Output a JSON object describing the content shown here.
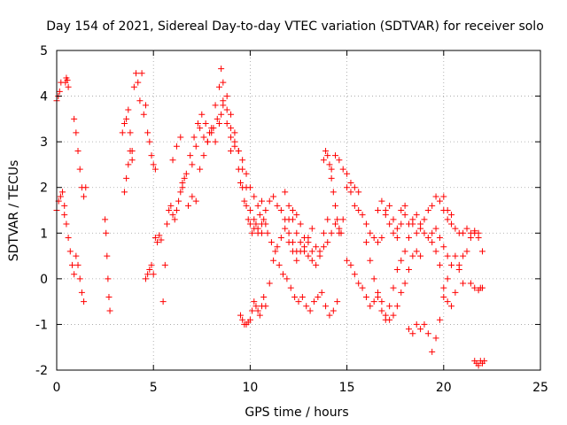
{
  "chart_data": {
    "type": "scatter",
    "title": "Day 154 of 2021, Sidereal Day-to-day VTEC variation (SDTVAR) for receiver solo",
    "xlabel": "GPS time / hours",
    "ylabel": "SDTVAR / TECUs",
    "xlim": [
      0,
      25
    ],
    "ylim": [
      -2,
      5
    ],
    "xticks": [
      0,
      5,
      10,
      15,
      20,
      25
    ],
    "yticks": [
      -2,
      -1,
      0,
      1,
      2,
      3,
      4,
      5
    ],
    "xtick_labels": [
      "0",
      "5",
      "10",
      "15",
      "20",
      "25"
    ],
    "ytick_labels": [
      "-2",
      "-1",
      "0",
      "1",
      "2",
      "3",
      "4",
      "5"
    ],
    "grid": true,
    "marker": "+",
    "color": "#ff0000",
    "series": [
      {
        "name": "seg01",
        "x": [
          0.0,
          0.1,
          0.2,
          0.3,
          0.4
        ],
        "y": [
          1.5,
          1.7,
          1.8,
          1.9,
          1.6
        ]
      },
      {
        "name": "seg02",
        "x": [
          0.0,
          0.08,
          0.15,
          0.22
        ],
        "y": [
          3.9,
          4.0,
          4.1,
          4.3
        ]
      },
      {
        "name": "seg03",
        "x": [
          0.45,
          0.5,
          0.55,
          0.6
        ],
        "y": [
          4.3,
          4.4,
          4.35,
          4.2
        ]
      },
      {
        "name": "seg04",
        "x": [
          0.4,
          0.5,
          0.6,
          0.7,
          0.8,
          0.9,
          1.0,
          1.1,
          1.2,
          1.3,
          1.4
        ],
        "y": [
          1.4,
          1.2,
          0.9,
          0.6,
          0.3,
          0.1,
          0.5,
          0.3,
          0.0,
          -0.3,
          -0.5
        ]
      },
      {
        "name": "seg05",
        "x": [
          0.9,
          1.0,
          1.1,
          1.2,
          1.3,
          1.4,
          1.5
        ],
        "y": [
          3.5,
          3.2,
          2.8,
          2.4,
          2.0,
          1.8,
          2.0
        ]
      },
      {
        "name": "seg06",
        "x": [
          2.5,
          2.55,
          2.6,
          2.65,
          2.7,
          2.75
        ],
        "y": [
          1.3,
          1.0,
          0.5,
          0.0,
          -0.4,
          -0.7
        ]
      },
      {
        "name": "seg07",
        "x": [
          3.4,
          3.5,
          3.6,
          3.7,
          3.8,
          3.9,
          4.0,
          4.1,
          4.2
        ],
        "y": [
          3.2,
          3.4,
          3.5,
          3.7,
          3.2,
          2.8,
          4.2,
          4.5,
          4.3
        ]
      },
      {
        "name": "seg08",
        "x": [
          3.5,
          3.6,
          3.7,
          3.8,
          3.9
        ],
        "y": [
          1.9,
          2.2,
          2.5,
          2.8,
          2.6
        ]
      },
      {
        "name": "seg09",
        "x": [
          4.3,
          4.4,
          4.5,
          4.6,
          4.7,
          4.8,
          4.9,
          5.0,
          5.1
        ],
        "y": [
          3.9,
          4.5,
          3.6,
          3.8,
          3.2,
          3.0,
          2.7,
          2.5,
          2.4
        ]
      },
      {
        "name": "seg10",
        "x": [
          4.6,
          4.7,
          4.8,
          4.9,
          5.0
        ],
        "y": [
          0.0,
          0.1,
          0.2,
          0.3,
          0.1
        ]
      },
      {
        "name": "seg11",
        "x": [
          5.1,
          5.2,
          5.3,
          5.4
        ],
        "y": [
          0.9,
          0.8,
          0.95,
          0.85
        ]
      },
      {
        "name": "seg12",
        "x": [
          5.5,
          5.6,
          5.7,
          5.8,
          5.9,
          6.0,
          6.1,
          6.2,
          6.3,
          6.4,
          6.5
        ],
        "y": [
          -0.5,
          0.3,
          1.2,
          1.5,
          1.6,
          1.4,
          1.3,
          1.5,
          1.7,
          1.9,
          2.1
        ]
      },
      {
        "name": "seg13",
        "x": [
          6.0,
          6.2,
          6.4,
          6.6,
          6.8,
          7.0,
          7.2,
          7.4,
          7.6,
          7.8,
          8.0,
          8.2,
          8.4,
          8.6,
          8.8,
          9.0
        ],
        "y": [
          2.6,
          2.9,
          3.1,
          2.2,
          1.6,
          1.8,
          1.7,
          2.4,
          2.7,
          3.0,
          3.2,
          3.0,
          3.4,
          3.8,
          3.4,
          2.8
        ]
      },
      {
        "name": "seg14",
        "x": [
          6.5,
          6.7,
          6.9,
          7.1,
          7.3,
          7.5,
          7.7,
          7.9,
          8.1,
          8.3,
          8.5
        ],
        "y": [
          2.0,
          2.3,
          2.7,
          3.1,
          3.4,
          3.6,
          3.4,
          3.2,
          3.3,
          3.5,
          3.6
        ]
      },
      {
        "name": "seg15",
        "x": [
          7.0,
          7.2,
          7.4,
          7.6,
          7.8,
          8.0,
          8.2,
          8.4,
          8.5,
          8.6,
          8.8,
          9.0,
          9.2,
          9.4,
          9.6,
          9.8,
          10.0,
          10.2,
          10.4,
          10.6,
          10.8
        ],
        "y": [
          2.5,
          2.9,
          3.3,
          3.1,
          3.0,
          3.3,
          3.8,
          4.2,
          4.6,
          4.3,
          4.0,
          3.6,
          3.2,
          2.8,
          2.4,
          2.0,
          1.5,
          1.3,
          1.1,
          1.0,
          1.2
        ]
      },
      {
        "name": "seg16",
        "x": [
          8.6,
          8.8,
          9.0,
          9.2,
          9.4,
          9.6,
          9.8,
          10.0,
          10.2,
          10.4,
          10.6,
          10.8,
          11.0,
          11.2,
          11.4,
          11.6,
          11.8,
          12.0,
          12.2,
          12.4
        ],
        "y": [
          3.9,
          3.7,
          3.3,
          2.9,
          2.4,
          2.0,
          1.6,
          1.2,
          1.1,
          1.0,
          1.2,
          1.5,
          1.7,
          1.8,
          1.6,
          1.5,
          1.3,
          1.0,
          0.8,
          0.6
        ]
      },
      {
        "name": "seg17",
        "x": [
          9.0,
          9.2,
          9.4,
          9.6,
          9.8,
          10.0,
          10.2,
          10.4,
          10.6
        ],
        "y": [
          3.1,
          3.0,
          2.8,
          2.6,
          2.3,
          2.0,
          1.8,
          1.6,
          1.7
        ]
      },
      {
        "name": "seg18",
        "x": [
          9.5,
          9.7,
          9.9,
          10.1,
          10.3,
          10.5,
          10.7,
          10.9,
          11.1,
          11.3,
          11.5,
          11.7,
          11.9,
          12.1,
          12.3,
          12.5,
          12.7,
          12.9,
          13.1,
          13.3,
          13.5,
          13.7,
          13.9,
          14.1,
          14.3,
          14.5
        ],
        "y": [
          2.1,
          1.7,
          1.3,
          1.0,
          1.2,
          1.4,
          1.3,
          1.0,
          0.8,
          0.6,
          0.3,
          0.1,
          0.0,
          -0.2,
          -0.4,
          -0.5,
          -0.4,
          -0.6,
          -0.7,
          -0.5,
          -0.4,
          -0.3,
          -0.6,
          -0.8,
          -0.7,
          -0.5
        ]
      },
      {
        "name": "seg19",
        "x": [
          9.5,
          9.6,
          9.7,
          9.8,
          9.9,
          10.0,
          10.1,
          10.2,
          10.3,
          10.4,
          10.5,
          10.6,
          10.7
        ],
        "y": [
          -0.8,
          -0.9,
          -1.0,
          -1.0,
          -0.95,
          -0.9,
          -0.7,
          -0.5,
          -0.6,
          -0.7,
          -0.8,
          -0.6,
          -0.4
        ]
      },
      {
        "name": "seg20",
        "x": [
          10.8,
          11.0,
          11.2,
          11.4,
          11.6,
          11.8,
          12.0,
          12.2,
          12.4,
          12.6,
          12.8,
          13.0,
          13.2,
          13.4,
          13.6,
          13.8,
          14.0,
          14.2,
          14.4,
          14.6,
          14.8,
          15.0,
          15.2,
          15.4,
          15.6
        ],
        "y": [
          -0.6,
          -0.1,
          0.4,
          0.7,
          0.9,
          1.1,
          1.3,
          1.5,
          1.4,
          1.2,
          0.9,
          0.8,
          0.6,
          0.3,
          0.6,
          1.0,
          1.3,
          2.4,
          2.7,
          2.6,
          2.4,
          2.3,
          2.1,
          2.0,
          1.9
        ]
      },
      {
        "name": "seg21",
        "x": [
          12.0,
          12.2,
          12.4,
          12.6,
          12.8,
          13.0,
          13.2,
          13.4,
          13.6,
          13.8,
          14.0,
          14.2,
          14.4,
          14.6,
          14.8
        ],
        "y": [
          0.8,
          0.6,
          0.4,
          0.6,
          0.7,
          0.9,
          1.1,
          0.7,
          0.5,
          0.7,
          0.8,
          1.0,
          1.2,
          1.0,
          1.3
        ]
      },
      {
        "name": "seg22",
        "x": [
          13.8,
          13.9,
          14.0,
          14.1,
          14.2,
          14.3,
          14.4,
          14.5,
          14.6,
          14.7
        ],
        "y": [
          2.6,
          2.8,
          2.7,
          2.5,
          2.2,
          1.9,
          1.6,
          1.3,
          1.1,
          1.0
        ]
      },
      {
        "name": "seg23",
        "x": [
          15.0,
          15.2,
          15.4,
          15.6,
          15.8,
          16.0,
          16.2,
          16.4,
          16.6,
          16.8,
          17.0,
          17.2,
          17.4,
          17.6,
          17.8,
          18.0,
          18.2,
          18.4,
          18.6,
          18.8,
          19.0,
          19.2,
          19.4,
          19.6,
          19.8,
          20.0,
          20.2,
          20.4
        ],
        "y": [
          2.0,
          1.9,
          1.6,
          1.5,
          1.4,
          1.2,
          1.0,
          0.9,
          0.8,
          0.9,
          1.5,
          1.6,
          1.3,
          1.1,
          1.5,
          1.4,
          1.2,
          1.3,
          1.4,
          1.2,
          1.3,
          1.5,
          1.6,
          1.8,
          1.7,
          1.8,
          1.5,
          1.4
        ]
      },
      {
        "name": "seg24",
        "x": [
          15.0,
          15.2,
          15.4,
          15.6,
          15.8,
          16.0,
          16.2,
          16.4,
          16.6,
          16.8,
          17.0,
          17.2,
          17.4,
          17.6,
          17.8,
          18.0,
          18.2,
          18.4,
          18.6,
          18.8
        ],
        "y": [
          0.4,
          0.3,
          0.1,
          -0.1,
          -0.2,
          -0.4,
          -0.6,
          -0.5,
          -0.3,
          -0.5,
          -0.8,
          -0.9,
          -0.8,
          -0.6,
          -0.3,
          -0.1,
          0.2,
          0.5,
          0.6,
          0.5
        ]
      },
      {
        "name": "seg25",
        "x": [
          16.0,
          16.2,
          16.4,
          16.6,
          16.8,
          17.0,
          17.2,
          17.4,
          17.6,
          17.8,
          18.0,
          18.2,
          18.4,
          18.6,
          18.8,
          19.0,
          19.2,
          19.4,
          19.6,
          19.8,
          20.0,
          20.2
        ],
        "y": [
          0.8,
          0.4,
          0.0,
          -0.4,
          -0.7,
          -0.9,
          -0.6,
          -0.2,
          0.2,
          0.4,
          0.6,
          0.9,
          1.2,
          1.0,
          1.1,
          1.0,
          0.9,
          1.0,
          1.1,
          0.9,
          0.7,
          0.5
        ]
      },
      {
        "name": "seg26",
        "x": [
          16.6,
          16.8,
          17.0,
          17.2,
          17.4,
          17.6,
          17.8,
          18.0
        ],
        "y": [
          1.5,
          1.7,
          1.4,
          1.2,
          1.0,
          0.9,
          1.2,
          1.6
        ]
      },
      {
        "name": "seg27",
        "x": [
          18.2,
          18.4,
          18.6,
          18.8,
          19.0,
          19.2,
          19.4,
          19.6,
          19.8,
          20.0,
          20.2,
          20.4,
          20.6,
          20.8,
          21.0
        ],
        "y": [
          -1.1,
          -1.2,
          -1.0,
          -1.1,
          -1.0,
          -1.2,
          -1.6,
          -1.3,
          -0.9,
          -0.4,
          0.0,
          0.3,
          0.5,
          0.2,
          -0.1
        ]
      },
      {
        "name": "seg28",
        "x": [
          19.4,
          19.6,
          19.8,
          20.0,
          20.2,
          20.4,
          20.6,
          20.8,
          21.0,
          21.2,
          21.4,
          21.6,
          21.8,
          22.0
        ],
        "y": [
          0.8,
          0.6,
          0.3,
          -0.2,
          -0.5,
          -0.6,
          -0.3,
          0.3,
          0.5,
          0.6,
          0.9,
          1.0,
          0.9,
          0.6
        ]
      },
      {
        "name": "seg29",
        "x": [
          20.0,
          20.2,
          20.4,
          20.6,
          20.8,
          21.0,
          21.2,
          21.4,
          21.6,
          21.8
        ],
        "y": [
          1.5,
          1.3,
          1.2,
          1.1,
          1.0,
          1.0,
          1.1,
          1.0,
          1.05,
          1.0
        ]
      },
      {
        "name": "seg30",
        "x": [
          21.4,
          21.6,
          21.8,
          21.9,
          22.0
        ],
        "y": [
          -0.1,
          -0.2,
          -0.25,
          -0.2,
          -0.2
        ]
      },
      {
        "name": "seg31",
        "x": [
          21.6,
          21.7,
          21.8,
          21.9,
          22.0,
          22.1
        ],
        "y": [
          -1.8,
          -1.85,
          -1.9,
          -1.8,
          -1.85,
          -1.8
        ]
      },
      {
        "name": "seg32",
        "x": [
          11.8,
          12.0,
          12.2,
          12.4,
          12.6,
          12.8,
          13.0,
          13.2
        ],
        "y": [
          1.9,
          1.6,
          1.3,
          1.0,
          0.8,
          0.6,
          0.5,
          0.4
        ]
      }
    ]
  }
}
